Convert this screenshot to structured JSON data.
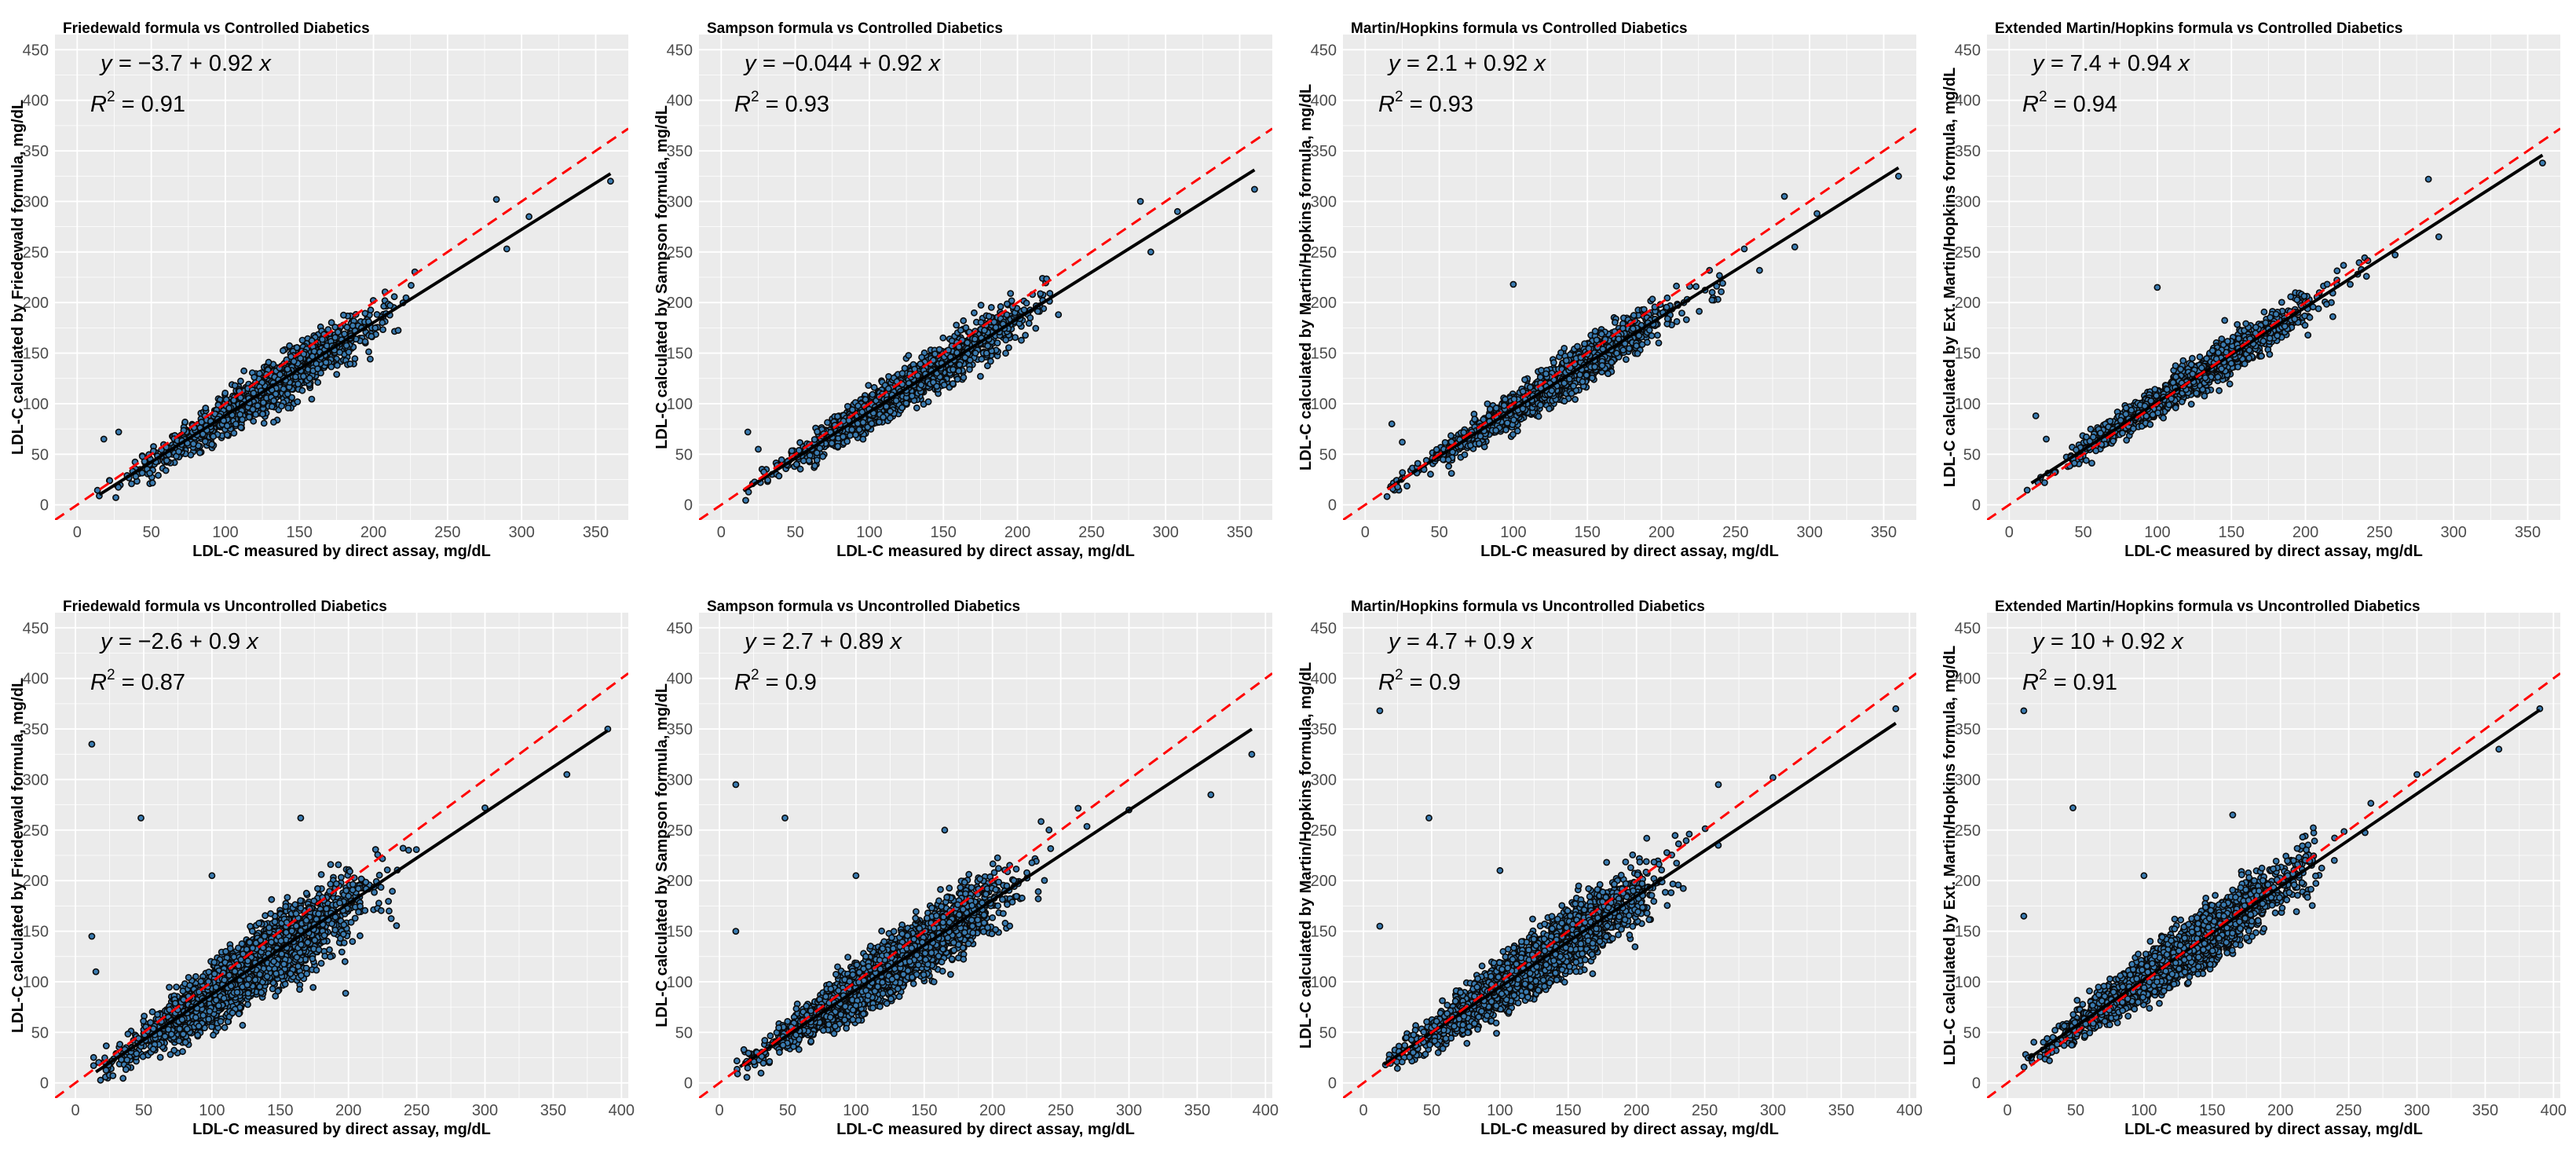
{
  "figure": {
    "x_axis_label": "LDL-C measured by direct assay, mg/dL",
    "y_tick_labels": [
      "0",
      "50",
      "100",
      "150",
      "200",
      "250",
      "300",
      "350",
      "400",
      "450"
    ],
    "colors": {
      "panel_background": "#ebebeb",
      "grid": "#ffffff",
      "point_fill": "#3a7bb0",
      "point_stroke": "#0a0a0a",
      "regression_line": "#000000",
      "identity_line": "#ff0000"
    }
  },
  "chart_data": [
    {
      "type": "scatter",
      "title": "Friedewald formula vs  Controlled Diabetics",
      "xlabel": "LDL-C measured by direct assay, mg/dL",
      "ylabel": "LDL-C calculated by Friedewald formula, mg/dL",
      "xlim": [
        -15,
        372
      ],
      "ylim": [
        -15,
        465
      ],
      "xticks": [
        0,
        50,
        100,
        150,
        200,
        250,
        300,
        350
      ],
      "xtick_labels": [
        "0",
        "50",
        "100",
        "150",
        "200",
        "250",
        "300",
        "350"
      ],
      "regression": {
        "intercept": -3.7,
        "slope": 0.92,
        "x_range": [
          15,
          360
        ]
      },
      "equation_label": {
        "y_text": "y = ",
        "formula": "−3.7 + 0.92 ",
        "x_text": "x"
      },
      "r2_label": {
        "r": "R",
        "sup": "2",
        "value": " = 0.91"
      },
      "identity_line": true,
      "n_points": 1500,
      "outliers": [
        [
          283,
          302
        ],
        [
          290,
          253
        ],
        [
          305,
          285
        ],
        [
          360,
          320
        ],
        [
          18,
          65
        ],
        [
          28,
          72
        ]
      ],
      "scatter_sd": 9
    },
    {
      "type": "scatter",
      "title": "Sampson formula vs  Controlled Diabetics",
      "xlabel": "LDL-C measured by direct assay, mg/dL",
      "ylabel": "LDL-C calculated by Sampson formula, mg/dL",
      "xlim": [
        -15,
        372
      ],
      "ylim": [
        -15,
        465
      ],
      "xticks": [
        0,
        50,
        100,
        150,
        200,
        250,
        300,
        350
      ],
      "xtick_labels": [
        "0",
        "50",
        "100",
        "150",
        "200",
        "250",
        "300",
        "350"
      ],
      "regression": {
        "intercept": -0.044,
        "slope": 0.92,
        "x_range": [
          15,
          360
        ]
      },
      "equation_label": {
        "y_text": "y = ",
        "formula": "−0.044 + 0.92 ",
        "x_text": "x"
      },
      "r2_label": {
        "r": "R",
        "sup": "2",
        "value": " = 0.93"
      },
      "identity_line": true,
      "n_points": 1500,
      "outliers": [
        [
          283,
          300
        ],
        [
          290,
          250
        ],
        [
          308,
          290
        ],
        [
          360,
          312
        ],
        [
          18,
          72
        ],
        [
          25,
          55
        ]
      ],
      "scatter_sd": 8
    },
    {
      "type": "scatter",
      "title": "Martin/Hopkins formula vs  Controlled Diabetics",
      "xlabel": "LDL-C measured by direct assay, mg/dL",
      "ylabel": "LDL-C calculated by Martin/Hopkins formula, mg/dL",
      "xlim": [
        -15,
        372
      ],
      "ylim": [
        -15,
        465
      ],
      "xticks": [
        0,
        50,
        100,
        150,
        200,
        250,
        300,
        350
      ],
      "xtick_labels": [
        "0",
        "50",
        "100",
        "150",
        "200",
        "250",
        "300",
        "350"
      ],
      "regression": {
        "intercept": 2.1,
        "slope": 0.92,
        "x_range": [
          15,
          360
        ]
      },
      "equation_label": {
        "y_text": "y = ",
        "formula": "2.1 + 0.92 ",
        "x_text": "x"
      },
      "r2_label": {
        "r": "R",
        "sup": "2",
        "value": " = 0.93"
      },
      "identity_line": true,
      "n_points": 1500,
      "outliers": [
        [
          283,
          305
        ],
        [
          290,
          255
        ],
        [
          305,
          288
        ],
        [
          360,
          325
        ],
        [
          18,
          80
        ],
        [
          25,
          62
        ],
        [
          100,
          218
        ]
      ],
      "scatter_sd": 8
    },
    {
      "type": "scatter",
      "title": "Extended Martin/Hopkins formula vs  Controlled Diabetics",
      "xlabel": "LDL-C measured by direct assay, mg/dL",
      "ylabel": "LDL-C calculated by Ext. Martin/Hopkins formula, mg/dL",
      "xlim": [
        -15,
        372
      ],
      "ylim": [
        -15,
        465
      ],
      "xticks": [
        0,
        50,
        100,
        150,
        200,
        250,
        300,
        350
      ],
      "xtick_labels": [
        "0",
        "50",
        "100",
        "150",
        "200",
        "250",
        "300",
        "350"
      ],
      "regression": {
        "intercept": 7.4,
        "slope": 0.94,
        "x_range": [
          15,
          360
        ]
      },
      "equation_label": {
        "y_text": "y = ",
        "formula": "7.4 + 0.94 ",
        "x_text": "x"
      },
      "r2_label": {
        "r": "R",
        "sup": "2",
        "value": " = 0.94"
      },
      "identity_line": true,
      "n_points": 1500,
      "outliers": [
        [
          283,
          322
        ],
        [
          290,
          265
        ],
        [
          360,
          338
        ],
        [
          18,
          88
        ],
        [
          25,
          65
        ],
        [
          100,
          215
        ]
      ],
      "scatter_sd": 7
    },
    {
      "type": "scatter",
      "title": "Friedewald formula vs  Uncontrolled Diabetics",
      "xlabel": "LDL-C measured by direct assay, mg/dL",
      "ylabel": "LDL-C calculated by Friedewald formula, mg/dL",
      "xlim": [
        -15,
        405
      ],
      "ylim": [
        -15,
        465
      ],
      "xticks": [
        0,
        50,
        100,
        150,
        200,
        250,
        300,
        350,
        400
      ],
      "xtick_labels": [
        "0",
        "50",
        "100",
        "150",
        "200",
        "250",
        "300",
        "350",
        "400"
      ],
      "regression": {
        "intercept": -2.6,
        "slope": 0.9,
        "x_range": [
          15,
          390
        ]
      },
      "equation_label": {
        "y_text": "y = ",
        "formula": "−2.6 + 0.9 ",
        "x_text": "x"
      },
      "r2_label": {
        "r": "R",
        "sup": "2",
        "value": " = 0.87"
      },
      "identity_line": true,
      "n_points": 3000,
      "outliers": [
        [
          12,
          335
        ],
        [
          48,
          262
        ],
        [
          12,
          145
        ],
        [
          15,
          110
        ],
        [
          100,
          205
        ],
        [
          165,
          262
        ],
        [
          300,
          272
        ],
        [
          360,
          305
        ],
        [
          390,
          350
        ]
      ],
      "scatter_sd": 13
    },
    {
      "type": "scatter",
      "title": "Sampson formula vs Uncontrolled Diabetics",
      "xlabel": "LDL-C measured by direct assay, mg/dL",
      "ylabel": "LDL-C calculated by Sampson formula, mg/dL",
      "xlim": [
        -15,
        405
      ],
      "ylim": [
        -15,
        465
      ],
      "xticks": [
        0,
        50,
        100,
        150,
        200,
        250,
        300,
        350,
        400
      ],
      "xtick_labels": [
        "0",
        "50",
        "100",
        "150",
        "200",
        "250",
        "300",
        "350",
        "400"
      ],
      "regression": {
        "intercept": 2.7,
        "slope": 0.89,
        "x_range": [
          15,
          390
        ]
      },
      "equation_label": {
        "y_text": "y = ",
        "formula": "2.7 + 0.89 ",
        "x_text": "x"
      },
      "r2_label": {
        "r": "R",
        "sup": "2",
        "value": " = 0.9"
      },
      "identity_line": true,
      "n_points": 3000,
      "outliers": [
        [
          12,
          295
        ],
        [
          48,
          262
        ],
        [
          12,
          150
        ],
        [
          100,
          205
        ],
        [
          165,
          250
        ],
        [
          300,
          270
        ],
        [
          360,
          285
        ],
        [
          390,
          325
        ]
      ],
      "scatter_sd": 11
    },
    {
      "type": "scatter",
      "title": "Martin/Hopkins formula vs Uncontrolled Diabetics",
      "xlabel": "LDL-C measured by direct assay, mg/dL",
      "ylabel": "LDL-C calculated by Martin/Hopkins formula, mg/dL",
      "xlim": [
        -15,
        405
      ],
      "ylim": [
        -15,
        465
      ],
      "xticks": [
        0,
        50,
        100,
        150,
        200,
        250,
        300,
        350,
        400
      ],
      "xtick_labels": [
        "0",
        "50",
        "100",
        "150",
        "200",
        "250",
        "300",
        "350",
        "400"
      ],
      "regression": {
        "intercept": 4.7,
        "slope": 0.9,
        "x_range": [
          15,
          390
        ]
      },
      "equation_label": {
        "y_text": "y = ",
        "formula": "4.7 + 0.9 ",
        "x_text": "x"
      },
      "r2_label": {
        "r": "R",
        "sup": "2",
        "value": " = 0.9"
      },
      "identity_line": true,
      "n_points": 3000,
      "outliers": [
        [
          12,
          368
        ],
        [
          48,
          262
        ],
        [
          12,
          155
        ],
        [
          100,
          210
        ],
        [
          260,
          295
        ],
        [
          300,
          302
        ],
        [
          390,
          370
        ]
      ],
      "scatter_sd": 11
    },
    {
      "type": "scatter",
      "title": "Extended Martin/Hopkins formula vs Uncontrolled Diabetics",
      "xlabel": "LDL-C measured by direct assay, mg/dL",
      "ylabel": "LDL-C calculated by Ext. Martin/Hopkins formula, mg/dL",
      "xlim": [
        -15,
        405
      ],
      "ylim": [
        -15,
        465
      ],
      "xticks": [
        0,
        50,
        100,
        150,
        200,
        250,
        300,
        350,
        400
      ],
      "xtick_labels": [
        "0",
        "50",
        "100",
        "150",
        "200",
        "250",
        "300",
        "350",
        "400"
      ],
      "regression": {
        "intercept": 10,
        "slope": 0.92,
        "x_range": [
          15,
          390
        ]
      },
      "equation_label": {
        "y_text": "y = ",
        "formula": "10 + 0.92 ",
        "x_text": "x"
      },
      "r2_label": {
        "r": "R",
        "sup": "2",
        "value": " = 0.91"
      },
      "identity_line": true,
      "n_points": 3000,
      "outliers": [
        [
          12,
          368
        ],
        [
          48,
          272
        ],
        [
          12,
          165
        ],
        [
          100,
          205
        ],
        [
          165,
          265
        ],
        [
          300,
          305
        ],
        [
          360,
          330
        ],
        [
          390,
          370
        ]
      ],
      "scatter_sd": 10
    }
  ]
}
